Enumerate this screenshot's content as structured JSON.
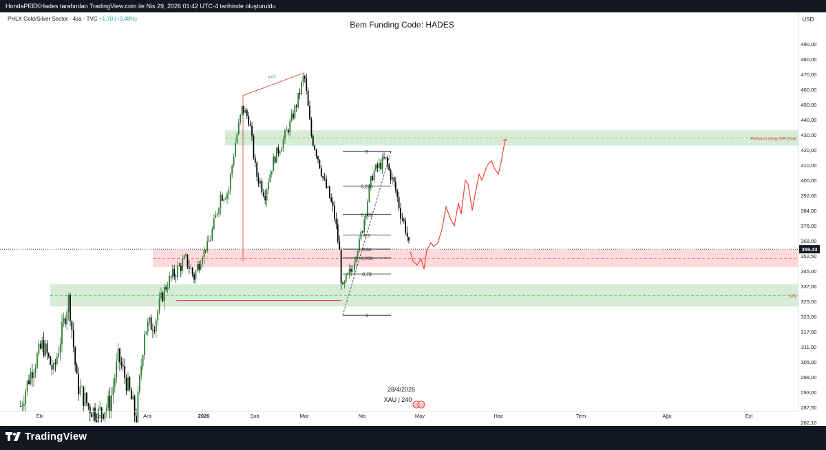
{
  "attribution": "HondaPEEKHades tarafından TradingView.com ile Nis 29, 2026 01:42 UTC-4 tarihinde oluşturuldu",
  "brand": "TradingView",
  "colors": {
    "bull": "#26a69a",
    "bear": "#000000",
    "candle_green": "#2e7d32",
    "green_zone": "#c8e6c9",
    "red_zone": "#ffcdd2",
    "projection": "#f44336",
    "fib": "#131722"
  },
  "chart_data": {
    "type": "candlestick",
    "symbol_line": {
      "name": "PHLX Gold/Silver Sector",
      "interval": "4sa",
      "source": "TVC",
      "change": "+1,70 (+0,48%)"
    },
    "title": "Bem Funding Code: HADES",
    "currency": "USD",
    "ylim": [
      282.1,
      500
    ],
    "y_ticks": [
      490,
      480,
      470,
      460,
      450,
      440,
      430,
      420,
      410,
      400,
      392,
      384,
      376,
      368,
      352.5,
      345,
      337,
      329,
      323,
      317,
      311,
      305,
      299,
      293,
      287.5,
      282.1
    ],
    "y_tick_labels": [
      "490,00",
      "480,00",
      "470,00",
      "460,00",
      "450,00",
      "440,00",
      "430,00",
      "420,00",
      "410,00",
      "400,00",
      "392,00",
      "384,00",
      "376,00",
      "368,00",
      "352,50",
      "345,00",
      "337,00",
      "329,00",
      "323,00",
      "317,00",
      "311,00",
      "305,00",
      "299,00",
      "293,00",
      "287,50",
      "282,10"
    ],
    "last_price": 359.43,
    "last_price_label": "359,43",
    "x_months": [
      "Eki",
      "Kas",
      "Ara",
      "2026",
      "Şub",
      "Mar",
      "Nis",
      "May",
      "Haz",
      "Tem",
      "Ağu",
      "Eyl"
    ],
    "zones": [
      {
        "kind": "green",
        "low": 423,
        "high": 433,
        "label": "Premium Array S/R Zone"
      },
      {
        "kind": "red",
        "low": 347,
        "high": 359,
        "label": ""
      },
      {
        "kind": "green",
        "low": 327,
        "high": 338,
        "label": "S/R"
      }
    ],
    "support_line": 329.5,
    "fib_levels": [
      {
        "ratio": "0",
        "price": 419
      },
      {
        "ratio": "0,236",
        "price": 397
      },
      {
        "ratio": "0,382",
        "price": 382
      },
      {
        "ratio": "0,5",
        "price": 371
      },
      {
        "ratio": "0,62",
        "price": 359.5
      },
      {
        "ratio": "0,705",
        "price": 351.5
      },
      {
        "ratio": "0,79",
        "price": 343.5
      },
      {
        "ratio": "1",
        "price": 323.5
      }
    ],
    "trend_label": "XXX",
    "date_label": "28/4/2026",
    "xau_label": "XAU | 240"
  }
}
